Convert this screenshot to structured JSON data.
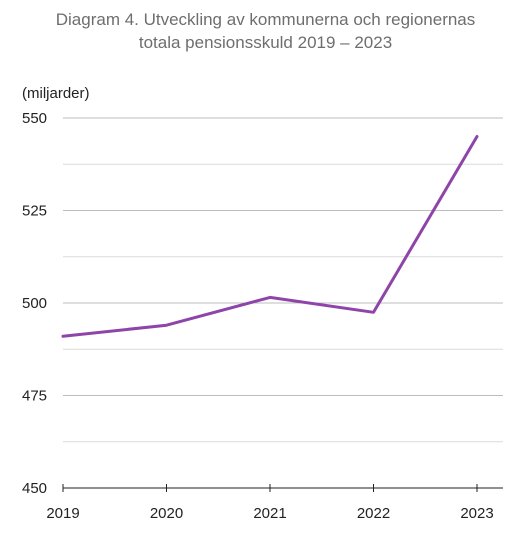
{
  "chart_data": {
    "type": "line",
    "title_lines": [
      "Diagram 4. Utveckling av kommunerna och regionernas",
      "totala pensionsskuld 2019 – 2023"
    ],
    "ylabel": "(miljarder)",
    "xlabel": "",
    "x": [
      "2019",
      "2020",
      "2021",
      "2022",
      "2023"
    ],
    "series": [
      {
        "values": [
          491,
          494,
          501.5,
          497.5,
          545
        ],
        "color": "#8e44a8"
      }
    ],
    "ylim": [
      450,
      550
    ],
    "yticks": [
      450,
      475,
      500,
      525,
      550
    ],
    "grid": true,
    "legend": "none"
  }
}
